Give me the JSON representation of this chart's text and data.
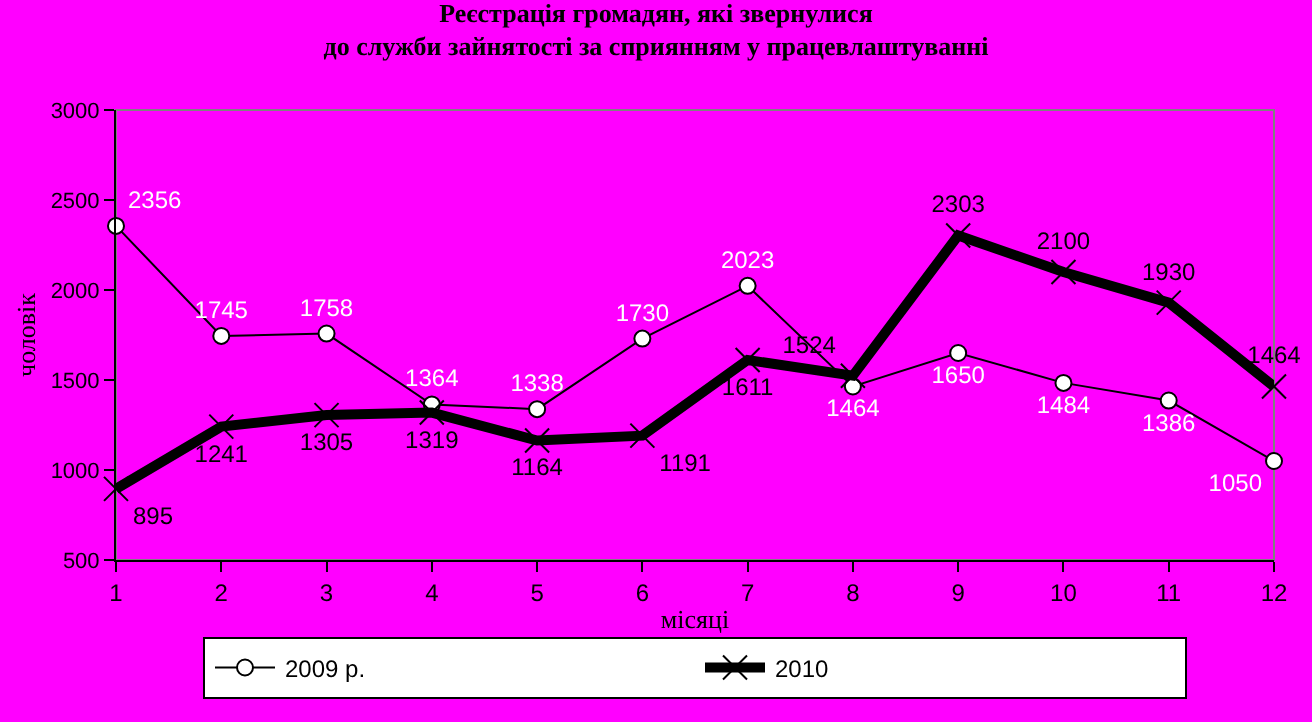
{
  "chart_data": {
    "type": "line",
    "title": "Реєстрація громадян, які звернулися\nдо служби зайнятості за сприянням у працевлаштуванні",
    "xlabel": "місяці",
    "ylabel": "чоловік",
    "x": [
      1,
      2,
      3,
      4,
      5,
      6,
      7,
      8,
      9,
      10,
      11,
      12
    ],
    "series": [
      {
        "name": "2009 р.",
        "color": "#000000",
        "marker": "circle",
        "values": [
          2356,
          1745,
          1758,
          1364,
          1338,
          1730,
          2023,
          1464,
          1650,
          1484,
          1386,
          1050
        ]
      },
      {
        "name": "2010",
        "color": "#000000",
        "marker": "cross",
        "values": [
          895,
          1241,
          1305,
          1319,
          1164,
          1191,
          1611,
          1524,
          2303,
          2100,
          1930,
          1464
        ]
      }
    ],
    "xlim": [
      1,
      12
    ],
    "xticks": [
      1,
      2,
      3,
      4,
      5,
      6,
      7,
      8,
      9,
      10,
      11,
      12
    ],
    "ylim": [
      500,
      3000
    ],
    "yticks": [
      500,
      1000,
      1500,
      2000,
      2500,
      3000
    ],
    "data_labels": true,
    "grid": false,
    "legend": "bottom",
    "line_style": "solid"
  }
}
